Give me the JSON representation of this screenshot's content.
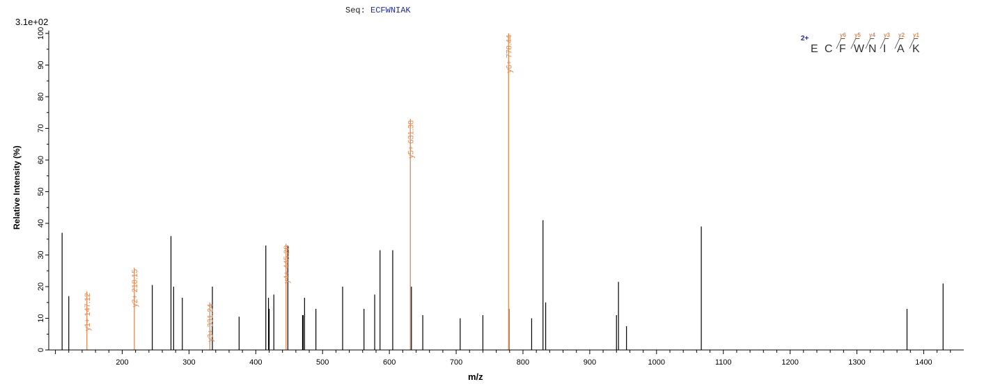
{
  "sequence": {
    "label": "Seq:",
    "value": "ECFWNIAK"
  },
  "scale_label": "3.1e+02",
  "peptide": {
    "charge": "2+",
    "residues": [
      "E",
      "C",
      "F",
      "W",
      "N",
      "I",
      "A",
      "K"
    ],
    "y_ions": [
      "y6",
      "y5",
      "y4",
      "y3",
      "y2",
      "y1"
    ]
  },
  "colors": {
    "annotated": "#e5874d",
    "unannotated": "#000000",
    "axis": "#000000",
    "sequence": "#1f2aa8"
  },
  "chart_data": {
    "type": "bar",
    "xlabel": "m/z",
    "ylabel": "Relative   Intensity (%)",
    "xlim": [
      90,
      1460
    ],
    "ylim": [
      0,
      100
    ],
    "x_ticks": [
      200,
      300,
      400,
      500,
      600,
      700,
      800,
      900,
      1000,
      1100,
      1200,
      1300,
      1400
    ],
    "y_ticks": [
      0,
      10,
      20,
      30,
      40,
      50,
      60,
      70,
      80,
      90,
      100
    ],
    "peaks_unannotated": [
      {
        "mz": 110,
        "intensity": 37
      },
      {
        "mz": 120,
        "intensity": 17
      },
      {
        "mz": 245,
        "intensity": 20.5
      },
      {
        "mz": 273,
        "intensity": 36
      },
      {
        "mz": 277,
        "intensity": 20
      },
      {
        "mz": 290,
        "intensity": 16.5
      },
      {
        "mz": 335,
        "intensity": 20
      },
      {
        "mz": 375,
        "intensity": 10.5
      },
      {
        "mz": 415,
        "intensity": 33
      },
      {
        "mz": 419,
        "intensity": 16.5
      },
      {
        "mz": 420,
        "intensity": 13
      },
      {
        "mz": 427,
        "intensity": 17.5
      },
      {
        "mz": 448,
        "intensity": 33
      },
      {
        "mz": 470,
        "intensity": 11
      },
      {
        "mz": 471,
        "intensity": 11
      },
      {
        "mz": 473,
        "intensity": 16.5
      },
      {
        "mz": 490,
        "intensity": 13
      },
      {
        "mz": 530,
        "intensity": 20
      },
      {
        "mz": 562,
        "intensity": 13
      },
      {
        "mz": 578,
        "intensity": 17.5
      },
      {
        "mz": 586,
        "intensity": 31.5
      },
      {
        "mz": 605,
        "intensity": 31.5
      },
      {
        "mz": 633,
        "intensity": 20
      },
      {
        "mz": 650,
        "intensity": 11
      },
      {
        "mz": 706,
        "intensity": 10
      },
      {
        "mz": 740,
        "intensity": 11
      },
      {
        "mz": 779,
        "intensity": 13
      },
      {
        "mz": 813,
        "intensity": 10
      },
      {
        "mz": 830,
        "intensity": 41
      },
      {
        "mz": 834,
        "intensity": 15
      },
      {
        "mz": 940,
        "intensity": 11
      },
      {
        "mz": 943,
        "intensity": 21.5
      },
      {
        "mz": 955,
        "intensity": 7.5
      },
      {
        "mz": 1067,
        "intensity": 39
      },
      {
        "mz": 1375,
        "intensity": 13
      },
      {
        "mz": 1429,
        "intensity": 21
      }
    ],
    "peaks_annotated": [
      {
        "mz": 147.12,
        "intensity": 18.5,
        "label": "y1+ 147.12"
      },
      {
        "mz": 218.15,
        "intensity": 26,
        "label": "y2+ 218.15"
      },
      {
        "mz": 331.24,
        "intensity": 15,
        "label": "y3+ 331.24"
      },
      {
        "mz": 445.28,
        "intensity": 33.5,
        "label": "y4+ 445.28"
      },
      {
        "mz": 631.38,
        "intensity": 73,
        "label": "y5+ 631.38"
      },
      {
        "mz": 778.44,
        "intensity": 100,
        "label": "y6+ 778.44"
      }
    ]
  }
}
